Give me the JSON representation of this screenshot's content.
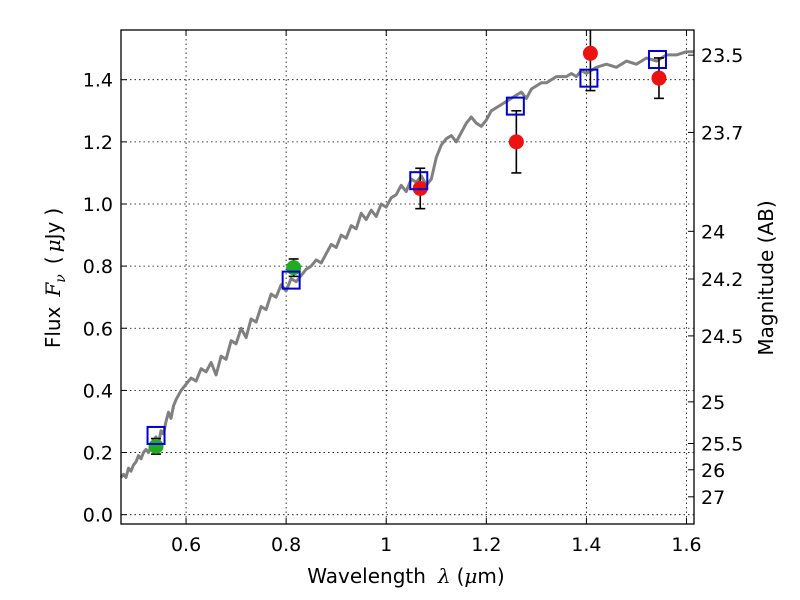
{
  "chart_data": {
    "type": "scatter",
    "xlabel": {
      "text": "Wavelength",
      "symbol": "λ",
      "unit_open": "(",
      "unit_mu": "μ",
      "unit_m": "m)"
    },
    "ylabel": {
      "text": "Flux",
      "symbol": "F",
      "subscript": "ν",
      "unit_open": "(",
      "unit_mu": "μ",
      "unit_rest": "Jy",
      "unit_close": ")"
    },
    "y2label": "Magnitude (AB)",
    "xlim": [
      0.47,
      1.615
    ],
    "ylim": [
      -0.03,
      1.56
    ],
    "xticks": [
      {
        "value": 0.6,
        "label": "0.6"
      },
      {
        "value": 0.8,
        "label": "0.8"
      },
      {
        "value": 1.0,
        "label": "1"
      },
      {
        "value": 1.2,
        "label": "1.2"
      },
      {
        "value": 1.4,
        "label": "1.4"
      },
      {
        "value": 1.6,
        "label": "1.6"
      }
    ],
    "yticks": [
      {
        "value": 0.0,
        "label": "0.0"
      },
      {
        "value": 0.2,
        "label": "0.2"
      },
      {
        "value": 0.4,
        "label": "0.4"
      },
      {
        "value": 0.6,
        "label": "0.6"
      },
      {
        "value": 0.8,
        "label": "0.8"
      },
      {
        "value": 1.0,
        "label": "1.0"
      },
      {
        "value": 1.2,
        "label": "1.2"
      },
      {
        "value": 1.4,
        "label": "1.4"
      }
    ],
    "y2ticks": [
      {
        "flux": 1.4791,
        "label": "23.5"
      },
      {
        "flux": 1.2303,
        "label": "23.7"
      },
      {
        "flux": 0.912,
        "label": "24"
      },
      {
        "flux": 0.7586,
        "label": "24.2"
      },
      {
        "flux": 0.5754,
        "label": "24.5"
      },
      {
        "flux": 0.3631,
        "label": "25"
      },
      {
        "flux": 0.2291,
        "label": "25.5"
      },
      {
        "flux": 0.1445,
        "label": "26"
      },
      {
        "flux": 0.0575,
        "label": "27"
      }
    ],
    "grid": true,
    "colors": {
      "spectrum": "#808080",
      "green": "#22aa22",
      "red": "#ee1111",
      "model": "#0000cc",
      "error": "#000000"
    },
    "spectrum": {
      "x": [
        0.47,
        0.475,
        0.48,
        0.485,
        0.49,
        0.495,
        0.5,
        0.505,
        0.51,
        0.515,
        0.52,
        0.525,
        0.53,
        0.535,
        0.54,
        0.545,
        0.55,
        0.555,
        0.56,
        0.565,
        0.57,
        0.575,
        0.58,
        0.59,
        0.6,
        0.61,
        0.62,
        0.63,
        0.64,
        0.65,
        0.66,
        0.67,
        0.68,
        0.69,
        0.7,
        0.71,
        0.72,
        0.73,
        0.74,
        0.75,
        0.76,
        0.77,
        0.78,
        0.79,
        0.8,
        0.81,
        0.82,
        0.83,
        0.84,
        0.85,
        0.86,
        0.87,
        0.88,
        0.89,
        0.9,
        0.91,
        0.92,
        0.93,
        0.94,
        0.95,
        0.96,
        0.97,
        0.98,
        0.99,
        1.0,
        1.01,
        1.02,
        1.03,
        1.04,
        1.05,
        1.06,
        1.07,
        1.08,
        1.09,
        1.1,
        1.11,
        1.12,
        1.13,
        1.14,
        1.15,
        1.16,
        1.17,
        1.18,
        1.19,
        1.2,
        1.21,
        1.22,
        1.23,
        1.24,
        1.25,
        1.26,
        1.27,
        1.28,
        1.29,
        1.3,
        1.31,
        1.32,
        1.33,
        1.34,
        1.35,
        1.36,
        1.37,
        1.38,
        1.39,
        1.4,
        1.42,
        1.44,
        1.46,
        1.48,
        1.5,
        1.52,
        1.54,
        1.56,
        1.58,
        1.6,
        1.615
      ],
      "y": [
        0.12,
        0.13,
        0.12,
        0.15,
        0.14,
        0.16,
        0.17,
        0.19,
        0.18,
        0.2,
        0.21,
        0.2,
        0.22,
        0.24,
        0.25,
        0.23,
        0.27,
        0.26,
        0.3,
        0.33,
        0.31,
        0.35,
        0.37,
        0.4,
        0.42,
        0.44,
        0.43,
        0.47,
        0.46,
        0.49,
        0.45,
        0.51,
        0.5,
        0.56,
        0.55,
        0.6,
        0.57,
        0.63,
        0.62,
        0.67,
        0.66,
        0.71,
        0.7,
        0.74,
        0.72,
        0.76,
        0.75,
        0.77,
        0.79,
        0.8,
        0.82,
        0.81,
        0.84,
        0.87,
        0.86,
        0.9,
        0.89,
        0.93,
        0.92,
        0.97,
        0.95,
        0.98,
        0.96,
        1.0,
        0.99,
        1.02,
        1.03,
        1.06,
        1.04,
        1.08,
        1.07,
        1.09,
        1.06,
        1.08,
        1.15,
        1.19,
        1.21,
        1.22,
        1.2,
        1.23,
        1.26,
        1.28,
        1.26,
        1.25,
        1.27,
        1.3,
        1.31,
        1.32,
        1.33,
        1.34,
        1.35,
        1.36,
        1.34,
        1.37,
        1.38,
        1.39,
        1.39,
        1.4,
        1.41,
        1.41,
        1.41,
        1.42,
        1.41,
        1.43,
        1.42,
        1.44,
        1.45,
        1.44,
        1.46,
        1.45,
        1.47,
        1.46,
        1.48,
        1.48,
        1.49,
        1.49
      ]
    },
    "observed": [
      {
        "x": 0.54,
        "y": 0.22,
        "err": 0.025,
        "color": "green"
      },
      {
        "x": 0.815,
        "y": 0.795,
        "err": 0.028,
        "color": "green"
      },
      {
        "x": 1.068,
        "y": 1.05,
        "err": 0.065,
        "color": "red"
      },
      {
        "x": 1.26,
        "y": 1.2,
        "err": 0.1,
        "color": "red"
      },
      {
        "x": 1.408,
        "y": 1.485,
        "err": 0.12,
        "color": "red"
      },
      {
        "x": 1.545,
        "y": 1.405,
        "err": 0.065,
        "color": "red"
      }
    ],
    "model_points": [
      {
        "x": 0.54,
        "y": 0.255
      },
      {
        "x": 0.81,
        "y": 0.755
      },
      {
        "x": 1.065,
        "y": 1.075
      },
      {
        "x": 1.258,
        "y": 1.315
      },
      {
        "x": 1.405,
        "y": 1.405
      },
      {
        "x": 1.542,
        "y": 1.465
      }
    ]
  }
}
